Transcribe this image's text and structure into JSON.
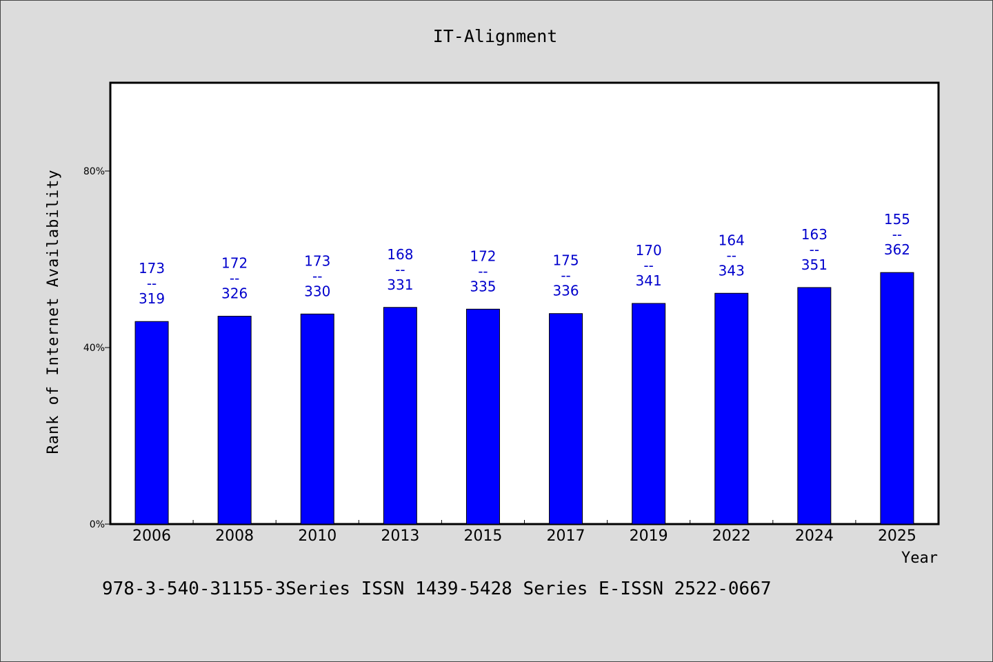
{
  "chart_data": {
    "type": "bar",
    "title": "IT-Alignment",
    "xlabel": "Year",
    "ylabel": "Rank of Internet Availability",
    "categories": [
      "2006",
      "2008",
      "2010",
      "2013",
      "2015",
      "2017",
      "2019",
      "2022",
      "2024",
      "2025"
    ],
    "values": [
      0.459,
      0.471,
      0.476,
      0.491,
      0.487,
      0.477,
      0.5,
      0.523,
      0.536,
      0.57
    ],
    "data_labels": [
      [
        "173",
        "--",
        "319"
      ],
      [
        "172",
        "--",
        "326"
      ],
      [
        "173",
        "--",
        "330"
      ],
      [
        "168",
        "--",
        "331"
      ],
      [
        "172",
        "--",
        "335"
      ],
      [
        "175",
        "--",
        "336"
      ],
      [
        "170",
        "--",
        "341"
      ],
      [
        "164",
        "--",
        "343"
      ],
      [
        "163",
        "--",
        "351"
      ],
      [
        "155",
        "--",
        "362"
      ]
    ],
    "ylim": [
      0,
      1.0
    ],
    "yticks": [
      0,
      0.4,
      0.8
    ],
    "ytick_labels": [
      "0%",
      "40%",
      "80%"
    ],
    "grid": false,
    "bar_color": "#0000ff",
    "label_color": "#0000cc"
  },
  "footer": "978-3-540-31155-3Series ISSN 1439-5428 Series E-ISSN 2522-0667"
}
